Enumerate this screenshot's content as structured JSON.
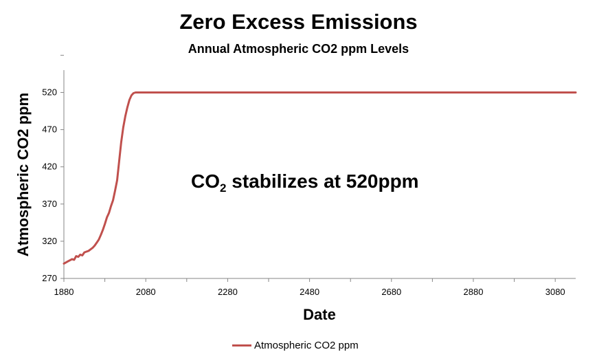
{
  "chart_data": {
    "type": "line",
    "title": "Zero Excess Emissions",
    "subtitle": "Annual Atmospheric CO2 ppm Levels",
    "xlabel": "Date",
    "ylabel": "Atmospheric CO2 ppm",
    "xlim": [
      1880,
      3130
    ],
    "ylim": [
      270,
      550
    ],
    "x_ticks": [
      1880,
      2080,
      2280,
      2480,
      2680,
      2880,
      3080
    ],
    "y_ticks": [
      270,
      320,
      370,
      420,
      470,
      520
    ],
    "grid": false,
    "legend_position": "bottom",
    "series": [
      {
        "name": "Atmospheric CO2 ppm",
        "color": "#c0504d",
        "x": [
          1880,
          1890,
          1900,
          1905,
          1910,
          1915,
          1920,
          1925,
          1930,
          1935,
          1940,
          1945,
          1950,
          1955,
          1960,
          1965,
          1970,
          1975,
          1980,
          1985,
          1990,
          1995,
          2000,
          2005,
          2010,
          2015,
          2020,
          2025,
          2030,
          2035,
          2040,
          2045,
          2050,
          2055,
          2060,
          2065,
          2070,
          2100,
          2200,
          2300,
          2400,
          2500,
          2600,
          2700,
          2800,
          2900,
          3000,
          3100,
          3130
        ],
        "y": [
          290,
          293,
          296,
          295,
          300,
          299,
          302,
          301,
          305,
          306,
          307,
          309,
          311,
          314,
          318,
          322,
          328,
          335,
          343,
          352,
          358,
          367,
          375,
          388,
          402,
          428,
          453,
          473,
          488,
          500,
          510,
          516,
          519,
          520,
          520,
          520,
          520,
          520,
          520,
          520,
          520,
          520,
          520,
          520,
          520,
          520,
          520,
          520,
          520
        ]
      }
    ],
    "annotation": {
      "prefix": "CO",
      "subscript": "2",
      "suffix": " stabilizes at 520ppm"
    }
  }
}
